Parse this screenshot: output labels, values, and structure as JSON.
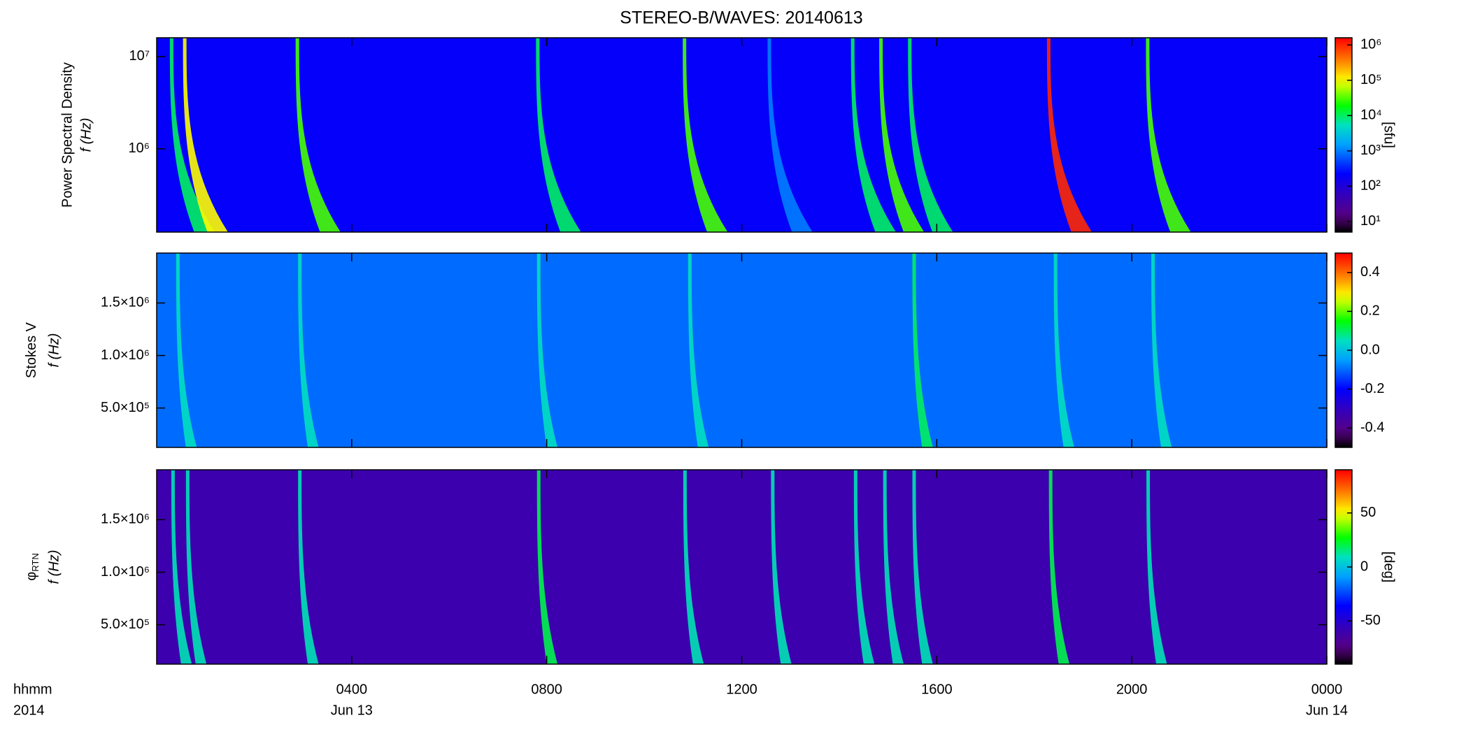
{
  "figure": {
    "title": "STEREO-B/WAVES: 20140613",
    "x_label": "hhmm",
    "year_label": "2014",
    "xlim": [
      0,
      24
    ],
    "xticks": [
      {
        "value": 4,
        "label": "0400"
      },
      {
        "value": 8,
        "label": "0800"
      },
      {
        "value": 12,
        "label": "1200"
      },
      {
        "value": 16,
        "label": "1600"
      },
      {
        "value": 20,
        "label": "2000"
      },
      {
        "value": 24,
        "label": "0000"
      }
    ],
    "date_labels": [
      {
        "value": 4,
        "label": "Jun 13"
      },
      {
        "value": 24,
        "label": "Jun 14"
      }
    ]
  },
  "chart_data": [
    {
      "type": "heatmap",
      "ylabel": "Power Spectral Density",
      "ylabel2": "f (Hz)",
      "log_y": true,
      "ylim": [
        125000,
        16000000
      ],
      "yticks": [
        {
          "value": 1000000,
          "label": "10⁶"
        },
        {
          "value": 10000000,
          "label": "10⁷"
        }
      ],
      "colorbar": {
        "log": true,
        "lim": [
          5,
          1600000
        ],
        "ticks": [
          {
            "value": 10,
            "label": "10¹"
          },
          {
            "value": 100,
            "label": "10²"
          },
          {
            "value": 1000,
            "label": "10³"
          },
          {
            "value": 10000,
            "label": "10⁴"
          },
          {
            "value": 100000,
            "label": "10⁵"
          },
          {
            "value": 1000000,
            "label": "10⁶"
          }
        ],
        "label": "[sfu]"
      },
      "background": 200,
      "bursts": {
        "hours": [
          0.27,
          0.54,
          2.85,
          7.78,
          10.79,
          12.53,
          14.24,
          14.82,
          15.41,
          18.26,
          20.29
        ],
        "values": [
          10000,
          100000,
          30000,
          10000,
          30000,
          1000,
          10000,
          30000,
          10000,
          1000000,
          30000
        ]
      }
    },
    {
      "type": "heatmap",
      "ylabel": "Stokes V",
      "ylabel2": "f (Hz)",
      "log_y": false,
      "ylim": [
        125000,
        1975000
      ],
      "yticks": [
        {
          "value": 500000,
          "label": "5.0×10⁵"
        },
        {
          "value": 1000000,
          "label": "1.0×10⁶"
        },
        {
          "value": 1500000,
          "label": "1.5×10⁶"
        }
      ],
      "colorbar": {
        "log": false,
        "lim": [
          -0.5,
          0.5
        ],
        "ticks": [
          -0.4,
          -0.2,
          {
            "value": 0,
            "label": "0.0"
          },
          0.2,
          0.4
        ]
      },
      "background": -0.1,
      "bursts": {
        "hours": [
          0.4,
          2.9,
          7.8,
          10.9,
          15.5,
          18.4,
          20.4
        ],
        "values": [
          0.05,
          0.05,
          0.05,
          0.05,
          0.1,
          0.05,
          0.05
        ]
      }
    },
    {
      "type": "heatmap",
      "ylabel": "φ",
      "ylabel_subscript": "RTN",
      "ylabel2": "f (Hz)",
      "log_y": false,
      "ylim": [
        125000,
        1975000
      ],
      "yticks": [
        {
          "value": 500000,
          "label": "5.0×10⁵"
        },
        {
          "value": 1000000,
          "label": "1.0×10⁶"
        },
        {
          "value": 1500000,
          "label": "1.5×10⁶"
        }
      ],
      "colorbar": {
        "log": false,
        "lim": [
          -90,
          90
        ],
        "ticks": [
          -50,
          0,
          50
        ],
        "label": "[deg]"
      },
      "background": -60,
      "bursts": {
        "hours": [
          0.3,
          0.6,
          2.9,
          7.8,
          10.8,
          12.6,
          14.3,
          14.9,
          15.5,
          18.3,
          20.3
        ],
        "values": [
          10,
          10,
          10,
          20,
          10,
          10,
          10,
          10,
          10,
          20,
          10
        ]
      }
    }
  ]
}
